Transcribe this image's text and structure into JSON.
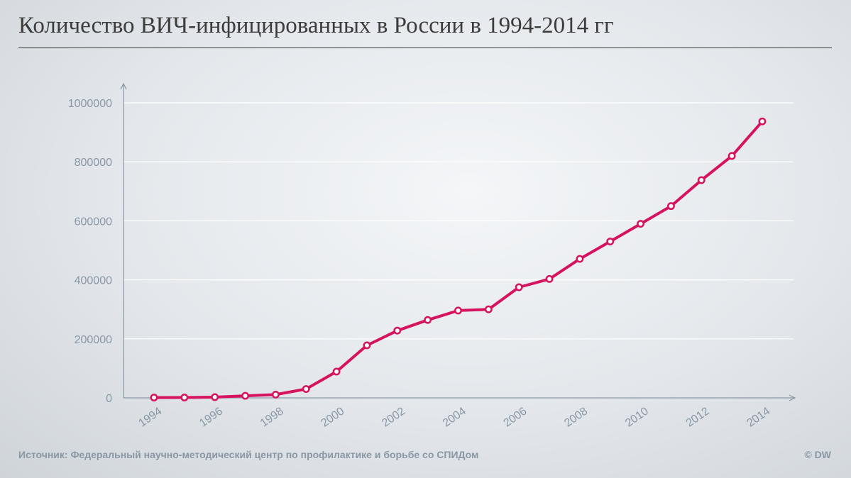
{
  "title": "Количество ВИЧ-инфицированных в России в 1994-2014 гг",
  "source": "Источник: Федеральный научно-методический центр по профилактике и борьбе со СПИДом",
  "credit": "© DW",
  "colors": {
    "line": "#d6135f",
    "grid": "#ffffff",
    "axis": "#8a97a4",
    "text": "#8a97a4"
  },
  "chart_data": {
    "type": "line",
    "title": "Количество ВИЧ-инфицированных в России в 1994-2014 гг",
    "xlabel": "",
    "ylabel": "",
    "x": [
      1994,
      1995,
      1996,
      1997,
      1998,
      1999,
      2000,
      2001,
      2002,
      2003,
      2004,
      2005,
      2006,
      2007,
      2008,
      2009,
      2010,
      2011,
      2012,
      2013,
      2014
    ],
    "series": [
      {
        "values": [
          1000,
          1200,
          2500,
          7000,
          11000,
          30000,
          89000,
          178000,
          228000,
          264000,
          296000,
          300000,
          375000,
          403000,
          471000,
          530000,
          590000,
          650000,
          738000,
          820000,
          937000
        ]
      }
    ],
    "ylim": [
      0,
      1000000
    ],
    "yticks": [
      "0",
      "200000",
      "400000",
      "600000",
      "800000",
      "1000000"
    ],
    "yticks_values": [
      0,
      200000,
      400000,
      600000,
      800000,
      1000000
    ],
    "xticks": [
      "1994",
      "1996",
      "1998",
      "2000",
      "2002",
      "2004",
      "2006",
      "2008",
      "2010",
      "2012",
      "2014"
    ],
    "grid": true,
    "legend": "none"
  }
}
